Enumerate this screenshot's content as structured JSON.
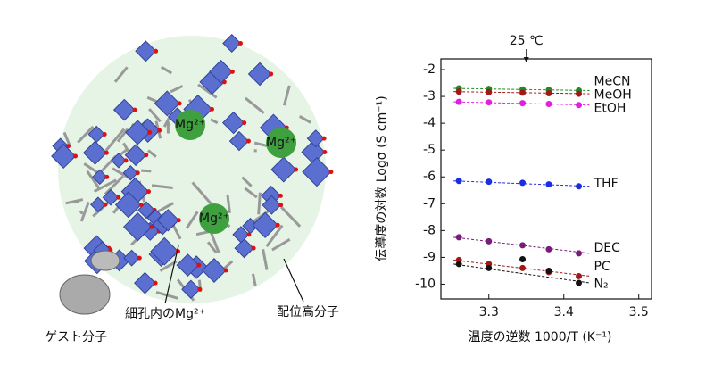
{
  "chart_data": {
    "type": "scatter",
    "xlabel": "温度の逆数 1000/T (K⁻¹)",
    "ylabel": "伝導度の対数 Logσ (S cm⁻¹)",
    "annotations": [
      {
        "text": "25 ℃",
        "x": 3.35
      }
    ],
    "x": [
      3.26,
      3.3,
      3.345,
      3.38,
      3.42
    ],
    "series": [
      {
        "name": "MeCN",
        "color": "#1e8c1e",
        "values": [
          -2.7,
          -2.72,
          -2.74,
          -2.76,
          -2.78
        ]
      },
      {
        "name": "MeOH",
        "color": "#a01818",
        "values": [
          -2.82,
          -2.84,
          -2.86,
          -2.88,
          -2.9
        ]
      },
      {
        "name": "EtOH",
        "color": "#e020e0",
        "values": [
          -3.2,
          -3.22,
          -3.25,
          -3.28,
          -3.32
        ]
      },
      {
        "name": "THF",
        "color": "#1a2ee0",
        "values": [
          -6.15,
          -6.18,
          -6.22,
          -6.28,
          -6.35
        ]
      },
      {
        "name": "DEC",
        "color": "#7a1a7a",
        "values": [
          -8.25,
          -8.4,
          -8.55,
          -8.7,
          -8.85
        ]
      },
      {
        "name": "PC",
        "color": "#a01818",
        "values": [
          -9.1,
          -9.25,
          -9.4,
          -9.55,
          -9.7
        ]
      },
      {
        "name": "N₂",
        "color": "#111111",
        "values": [
          -9.25,
          -9.4,
          -9.07,
          -9.5,
          -9.95
        ]
      }
    ],
    "xlim": [
      3.236,
      3.517
    ],
    "ylim": [
      -10.55,
      -1.6
    ],
    "xticks": [
      3.3,
      3.4,
      3.5
    ],
    "yticks": [
      -2,
      -3,
      -4,
      -5,
      -6,
      -7,
      -8,
      -9,
      -10
    ]
  },
  "illustration": {
    "ion_labels": [
      "Mg²⁺",
      "Mg²⁺",
      "Mg²⁺"
    ],
    "labels": [
      "ゲスト分子",
      "細孔内のMg²⁺",
      "配位高分子"
    ]
  }
}
